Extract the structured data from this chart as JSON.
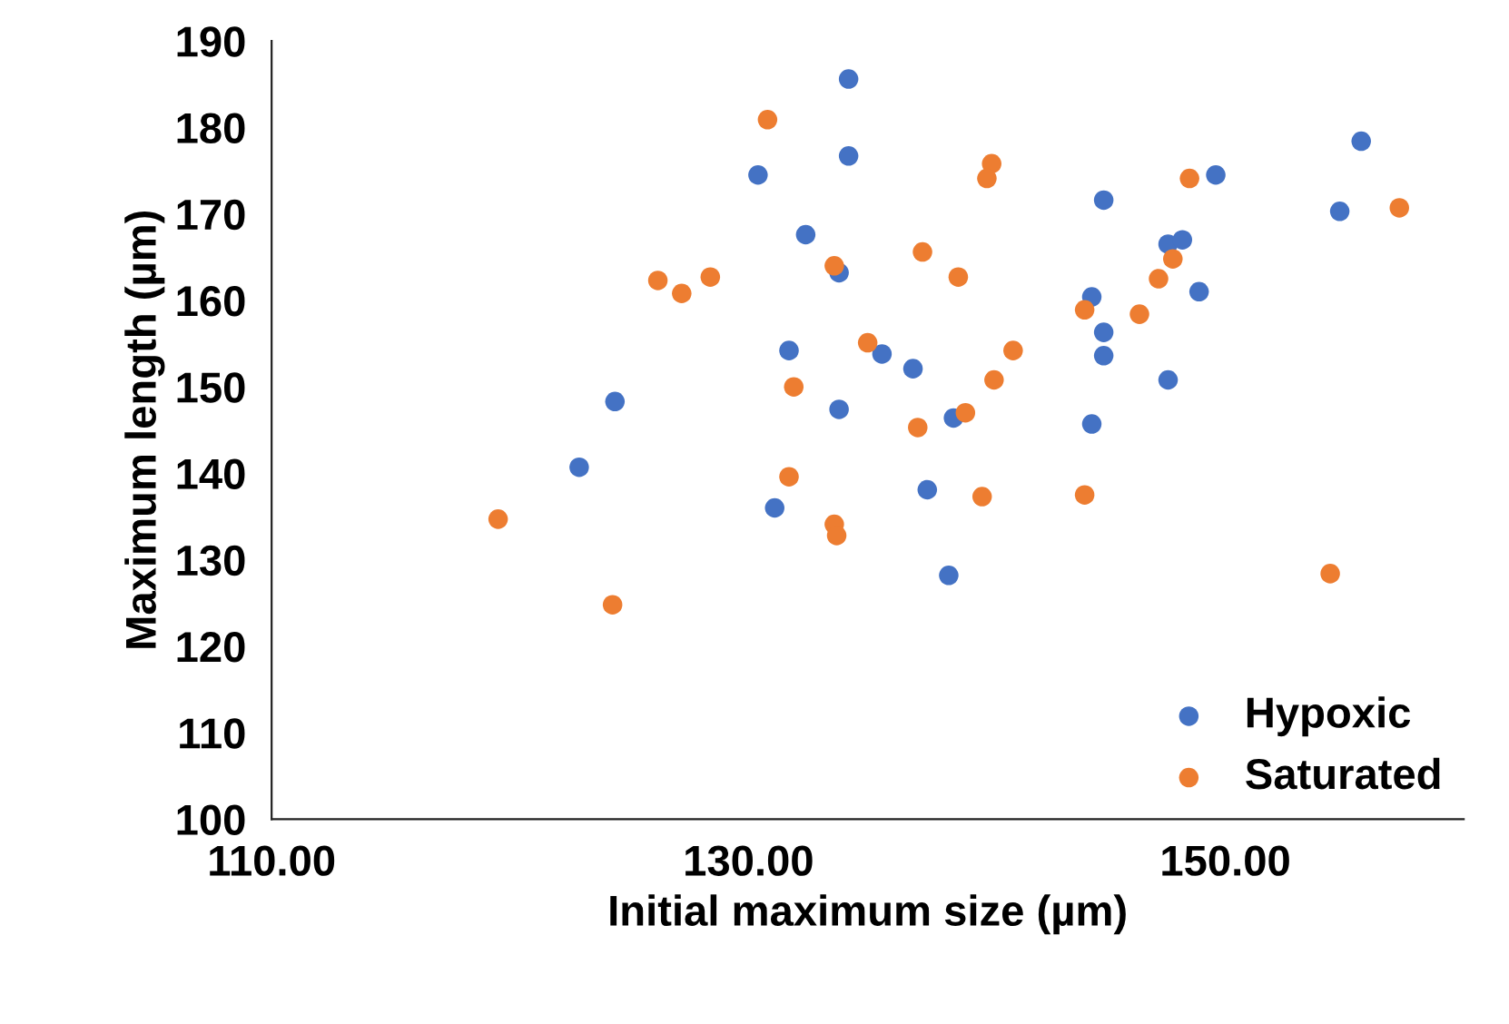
{
  "chart_data": {
    "type": "scatter",
    "xlabel": "Initial maximum size (µm)",
    "ylabel": "Maximum length (µm)",
    "xlim": [
      110,
      160
    ],
    "xticks": [
      {
        "value": 110,
        "label": "110.00"
      },
      {
        "value": 130,
        "label": "130.00"
      },
      {
        "value": 150,
        "label": "150.00"
      }
    ],
    "ylim": [
      100,
      190
    ],
    "yticks": [
      100,
      110,
      120,
      130,
      140,
      150,
      160,
      170,
      180,
      190
    ],
    "grid": false,
    "legend": "bottom right",
    "marker": "circle",
    "series": [
      {
        "name": "Hypoxic",
        "color": "#4472c4",
        "x": [
          134.2,
          134.2,
          130.4,
          132.4,
          133.8,
          131.7,
          124.4,
          133.8,
          122.9,
          131.1,
          135.6,
          136.9,
          137.5,
          138.4,
          138.6,
          144.9,
          144.4,
          144.9,
          144.9,
          147.6,
          144.4,
          147.6,
          148.2,
          149.6,
          148.9,
          155.7,
          154.8
        ],
        "values": [
          185.6,
          176.7,
          174.5,
          167.6,
          163.2,
          154.2,
          148.3,
          147.4,
          140.7,
          136.0,
          153.8,
          152.1,
          138.1,
          128.2,
          146.4,
          171.6,
          160.4,
          156.3,
          153.6,
          150.8,
          145.7,
          166.5,
          167.0,
          174.5,
          161.0,
          178.4,
          170.3
        ]
      },
      {
        "name": "Saturated",
        "color": "#ed7d31",
        "x": [
          130.8,
          126.2,
          127.2,
          128.4,
          133.6,
          135.0,
          131.9,
          131.7,
          133.6,
          133.7,
          119.5,
          124.3,
          140.2,
          140.0,
          137.3,
          138.8,
          141.1,
          140.3,
          139.1,
          137.1,
          139.8,
          144.1,
          144.1,
          146.4,
          147.2,
          147.8,
          148.5,
          157.3,
          154.4
        ],
        "values": [
          180.9,
          162.3,
          160.8,
          162.7,
          164.0,
          155.1,
          150.0,
          139.6,
          134.1,
          132.8,
          134.7,
          124.8,
          175.8,
          174.1,
          165.6,
          162.7,
          154.2,
          150.8,
          147.0,
          145.3,
          137.3,
          137.5,
          158.9,
          158.4,
          162.5,
          164.8,
          174.1,
          170.7,
          128.4
        ]
      }
    ]
  }
}
